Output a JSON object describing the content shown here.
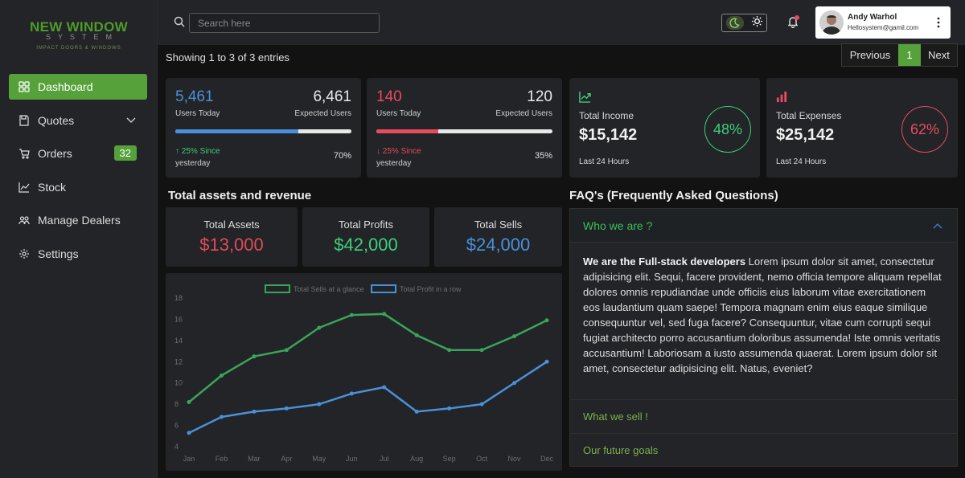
{
  "brand": {
    "name": "NEW WINDOW",
    "sub": "SYSTEM",
    "tagline": "IMPACT DOORS & WINDOWS"
  },
  "sidebar": {
    "items": [
      {
        "label": "Dashboard",
        "icon": "grid-icon",
        "active": true
      },
      {
        "label": "Quotes",
        "icon": "save-icon",
        "chevron": true
      },
      {
        "label": "Orders",
        "icon": "cart-icon",
        "badge": "32"
      },
      {
        "label": "Stock",
        "icon": "chart-line-icon"
      },
      {
        "label": "Manage Dealers",
        "icon": "users-icon"
      },
      {
        "label": "Settings",
        "icon": "gear-icon"
      }
    ]
  },
  "topbar": {
    "search_placeholder": "Search here",
    "user": {
      "name": "Andy Warhol",
      "email": "Hellosystem@gamil.com"
    }
  },
  "table_info": {
    "entries": "Showing 1 to 3 of 3 entries"
  },
  "pagination": {
    "previous": "Previous",
    "current": "1",
    "next": "Next"
  },
  "stats": [
    {
      "value": "5,461",
      "label": "Users Today",
      "expected_value": "6,461",
      "expected_label": "Expected Users",
      "trend": "↑ 25% Since",
      "trend_sub": "yesterday",
      "percent": "70%",
      "progress": 0.7,
      "color": "#4a90d9"
    },
    {
      "value": "140",
      "label": "Users Today",
      "expected_value": "120",
      "expected_label": "Expected Users",
      "trend": "↓ 25% Since",
      "trend_sub": "yesterday",
      "percent": "35%",
      "progress": 0.35,
      "color": "#e84a5f"
    }
  ],
  "income": {
    "title": "Total Income",
    "value": "$15,142",
    "sub": "Last 24 Hours",
    "percent": "48%",
    "color": "#3ecf7a"
  },
  "expenses": {
    "title": "Total Expenses",
    "value": "$25,142",
    "sub": "Last 24 Hours",
    "percent": "62%",
    "color": "#e84a5f"
  },
  "assets_section": {
    "title": "Total assets and revenue"
  },
  "assets": [
    {
      "label": "Total Assets",
      "value": "$13,000",
      "color": "#e04a5a"
    },
    {
      "label": "Total Profits",
      "value": "$42,000",
      "color": "#3ecf7a"
    },
    {
      "label": "Total Sells",
      "value": "$24,000",
      "color": "#4a90d9"
    }
  ],
  "chart_data": {
    "type": "line",
    "x": [
      "Jan",
      "Feb",
      "Mar",
      "Apr",
      "May",
      "Jun",
      "Jul",
      "Aug",
      "Sep",
      "Oct",
      "Nov",
      "Dec"
    ],
    "ylim": [
      4,
      18
    ],
    "yticks": [
      4,
      6,
      8,
      10,
      12,
      14,
      16,
      18
    ],
    "legend_position": "top",
    "grid": false,
    "series": [
      {
        "name": "Total Sells at a glance",
        "color": "#3aa55a",
        "values": [
          8.2,
          10.7,
          12.5,
          13.1,
          15.2,
          16.4,
          16.5,
          14.5,
          13.1,
          13.1,
          14.4,
          15.9
        ]
      },
      {
        "name": "Total Profit in a row",
        "color": "#4a90d9",
        "values": [
          5.3,
          6.8,
          7.3,
          7.6,
          8.0,
          9.0,
          9.6,
          7.3,
          7.6,
          8.0,
          10.0,
          12.0
        ]
      }
    ]
  },
  "faq": {
    "title": "FAQ's (Frequently Asked Questions)",
    "open_question": "Who we are ?",
    "answer_strong": "We are the Full-stack developers",
    "answer_text": " Lorem ipsum dolor sit amet, consectetur adipisicing elit. Sequi, facere provident, nemo officia tempore aliquam repellat dolores omnis repudiandae unde officiis eius laborum vitae exercitationem eos laudantium quam saepe! Tempora magnam enim eius eaque similique consequuntur vel, sed fuga facere? Consequuntur, vitae cum corrupti sequi fugiat architecto porro accusantium doloribus assumenda! Iste omnis veritatis accusantium! Laboriosam a iusto assumenda quaerat. Lorem ipsum dolor sit amet, consectetur adipisicing elit. Natus, eveniet?",
    "other_questions": [
      "What we sell !",
      "Our future goals"
    ]
  }
}
